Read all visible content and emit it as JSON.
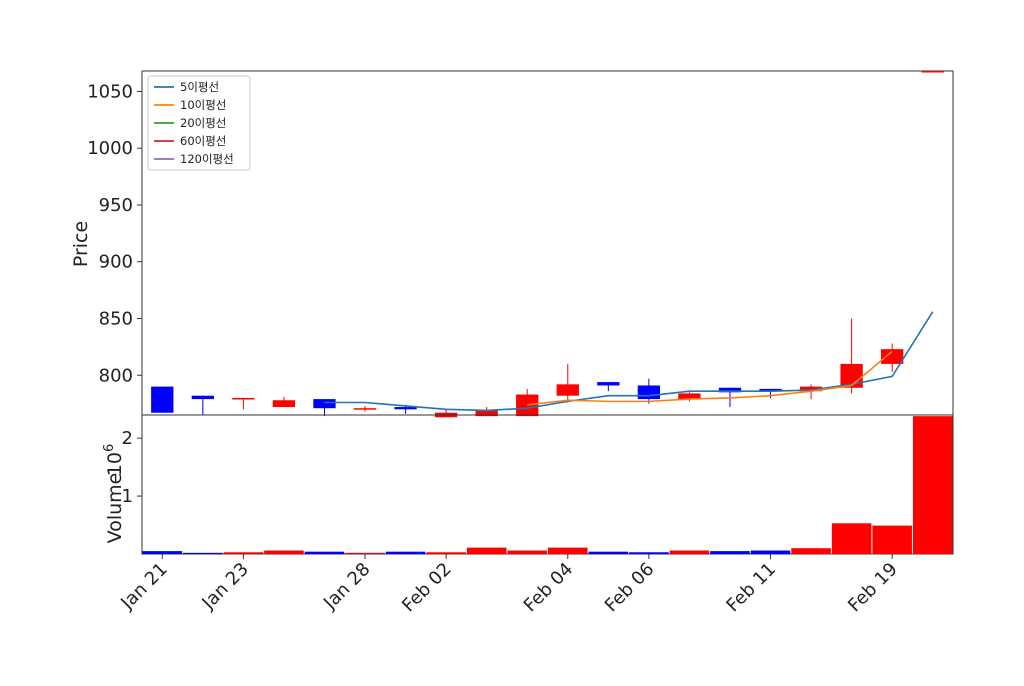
{
  "chart_data": {
    "type": "candlestick",
    "ylabel_price": "Price",
    "ylabel_volume": "Volume",
    "volume_exponent": "10",
    "volume_exponent_power": "6",
    "price_yticks": [
      800,
      850,
      900,
      950,
      1000,
      1050
    ],
    "price_ylim": [
      765,
      1068
    ],
    "volume_yticks": [
      1,
      2
    ],
    "volume_ylim": [
      0,
      2.4
    ],
    "xtick_labels": [
      "Jan 21",
      "Jan 23",
      "Jan 28",
      "Feb 02",
      "Feb 04",
      "Feb 06",
      "Feb 11",
      "Feb 19"
    ],
    "xtick_indices": [
      0,
      2,
      5,
      7,
      10,
      12,
      15,
      18
    ],
    "up_color": "#ff0000",
    "down_color": "#0000ff",
    "candles": [
      {
        "o": 790,
        "h": 790,
        "l": 767,
        "c": 767,
        "v": 0.05
      },
      {
        "o": 782,
        "h": 782,
        "l": 765,
        "c": 779,
        "v": 0.02
      },
      {
        "o": 780,
        "h": 780,
        "l": 770,
        "c": 780,
        "v": 0.03
      },
      {
        "o": 772,
        "h": 781,
        "l": 772,
        "c": 778,
        "v": 0.06
      },
      {
        "o": 779,
        "h": 779,
        "l": 764,
        "c": 771,
        "v": 0.04
      },
      {
        "o": 770,
        "h": 773,
        "l": 768,
        "c": 771,
        "v": 0.02
      },
      {
        "o": 772,
        "h": 774,
        "l": 766,
        "c": 770,
        "v": 0.04
      },
      {
        "o": 763,
        "h": 770,
        "l": 763,
        "c": 767,
        "v": 0.03
      },
      {
        "o": 764,
        "h": 772,
        "l": 764,
        "c": 769,
        "v": 0.11
      },
      {
        "o": 764,
        "h": 788,
        "l": 764,
        "c": 783,
        "v": 0.06
      },
      {
        "o": 782,
        "h": 810,
        "l": 776,
        "c": 792,
        "v": 0.11
      },
      {
        "o": 794,
        "h": 794,
        "l": 786,
        "c": 791,
        "v": 0.04
      },
      {
        "o": 791,
        "h": 797,
        "l": 775,
        "c": 779,
        "v": 0.03
      },
      {
        "o": 779,
        "h": 785,
        "l": 777,
        "c": 784,
        "v": 0.06
      },
      {
        "o": 789,
        "h": 789,
        "l": 772,
        "c": 785,
        "v": 0.05
      },
      {
        "o": 788,
        "h": 788,
        "l": 780,
        "c": 786,
        "v": 0.06
      },
      {
        "o": 786,
        "h": 792,
        "l": 779,
        "c": 790,
        "v": 0.1
      },
      {
        "o": 789,
        "h": 850,
        "l": 784,
        "c": 810,
        "v": 0.53
      },
      {
        "o": 810,
        "h": 828,
        "l": 803,
        "c": 823,
        "v": 0.49
      },
      {
        "o": 1068,
        "h": 1068,
        "l": 1068,
        "c": 1068,
        "v": 2.38
      }
    ],
    "series": [
      {
        "name": "5이평선",
        "color": "#1f77b4",
        "start": 4,
        "values": [
          776,
          776,
          773,
          770,
          769,
          771,
          777,
          782,
          782,
          786,
          786,
          786,
          787,
          792,
          799,
          856
        ]
      },
      {
        "name": "10이평선",
        "color": "#ff7f0e",
        "start": 9,
        "values": [
          774,
          778,
          777,
          777,
          779,
          780,
          782,
          786,
          791,
          821
        ]
      },
      {
        "name": "20이평선",
        "color": "#2ca02c",
        "start": 19,
        "values": []
      },
      {
        "name": "60이평선",
        "color": "#d62728",
        "start": 19,
        "values": []
      },
      {
        "name": "120이평선",
        "color": "#9467bd",
        "start": 19,
        "values": []
      }
    ]
  }
}
